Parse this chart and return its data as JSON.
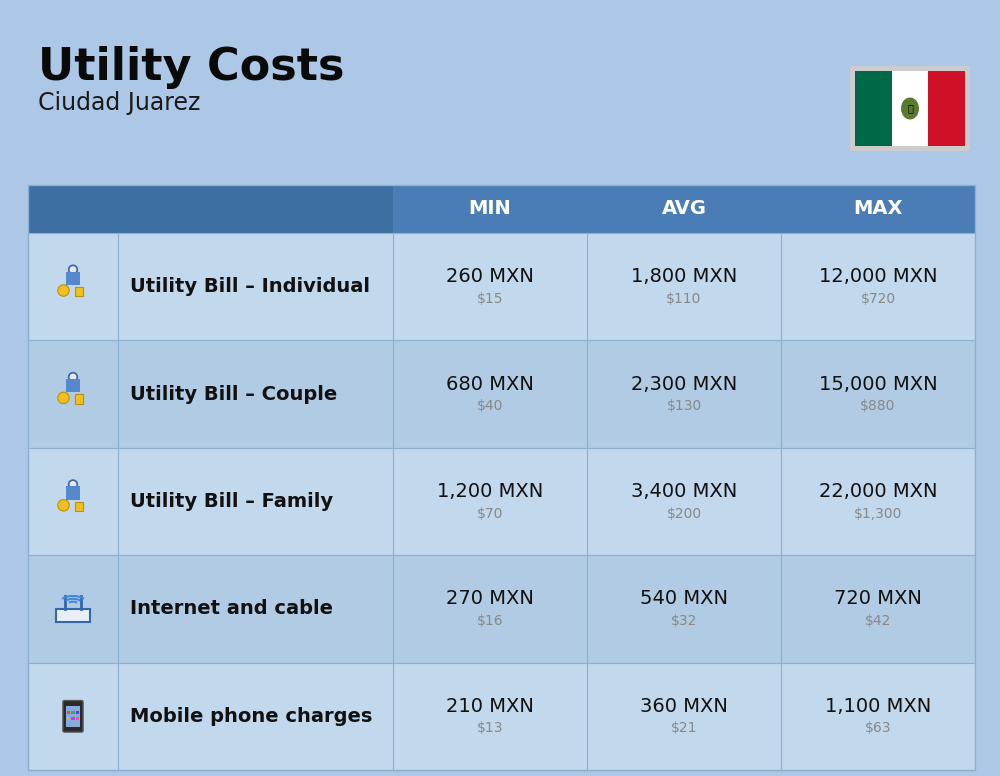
{
  "title": "Utility Costs",
  "subtitle": "Ciudad Juarez",
  "background_color": "#adc8e6",
  "header_color": "#4a7db5",
  "header_text_color": "#ffffff",
  "row_colors": [
    "#c2d8ed",
    "#b0cbe3"
  ],
  "divider_color": "#8aafd0",
  "headers": [
    "MIN",
    "AVG",
    "MAX"
  ],
  "rows": [
    {
      "label": "Utility Bill – Individual",
      "min_mxn": "260 MXN",
      "min_usd": "$15",
      "avg_mxn": "1,800 MXN",
      "avg_usd": "$110",
      "max_mxn": "12,000 MXN",
      "max_usd": "$720"
    },
    {
      "label": "Utility Bill – Couple",
      "min_mxn": "680 MXN",
      "min_usd": "$40",
      "avg_mxn": "2,300 MXN",
      "avg_usd": "$130",
      "max_mxn": "15,000 MXN",
      "max_usd": "$880"
    },
    {
      "label": "Utility Bill – Family",
      "min_mxn": "1,200 MXN",
      "min_usd": "$70",
      "avg_mxn": "3,400 MXN",
      "avg_usd": "$200",
      "max_mxn": "22,000 MXN",
      "max_usd": "$1,300"
    },
    {
      "label": "Internet and cable",
      "min_mxn": "270 MXN",
      "min_usd": "$16",
      "avg_mxn": "540 MXN",
      "avg_usd": "$32",
      "max_mxn": "720 MXN",
      "max_usd": "$42"
    },
    {
      "label": "Mobile phone charges",
      "min_mxn": "210 MXN",
      "min_usd": "$13",
      "avg_mxn": "360 MXN",
      "avg_usd": "$21",
      "max_mxn": "1,100 MXN",
      "max_usd": "$63"
    }
  ],
  "flag_green": "#006847",
  "flag_white": "#ffffff",
  "flag_red": "#ce1126",
  "usd_color": "#888888",
  "label_color": "#111111",
  "mxn_fontsize": 14,
  "usd_fontsize": 10,
  "label_fontsize": 14,
  "header_fontsize": 14
}
